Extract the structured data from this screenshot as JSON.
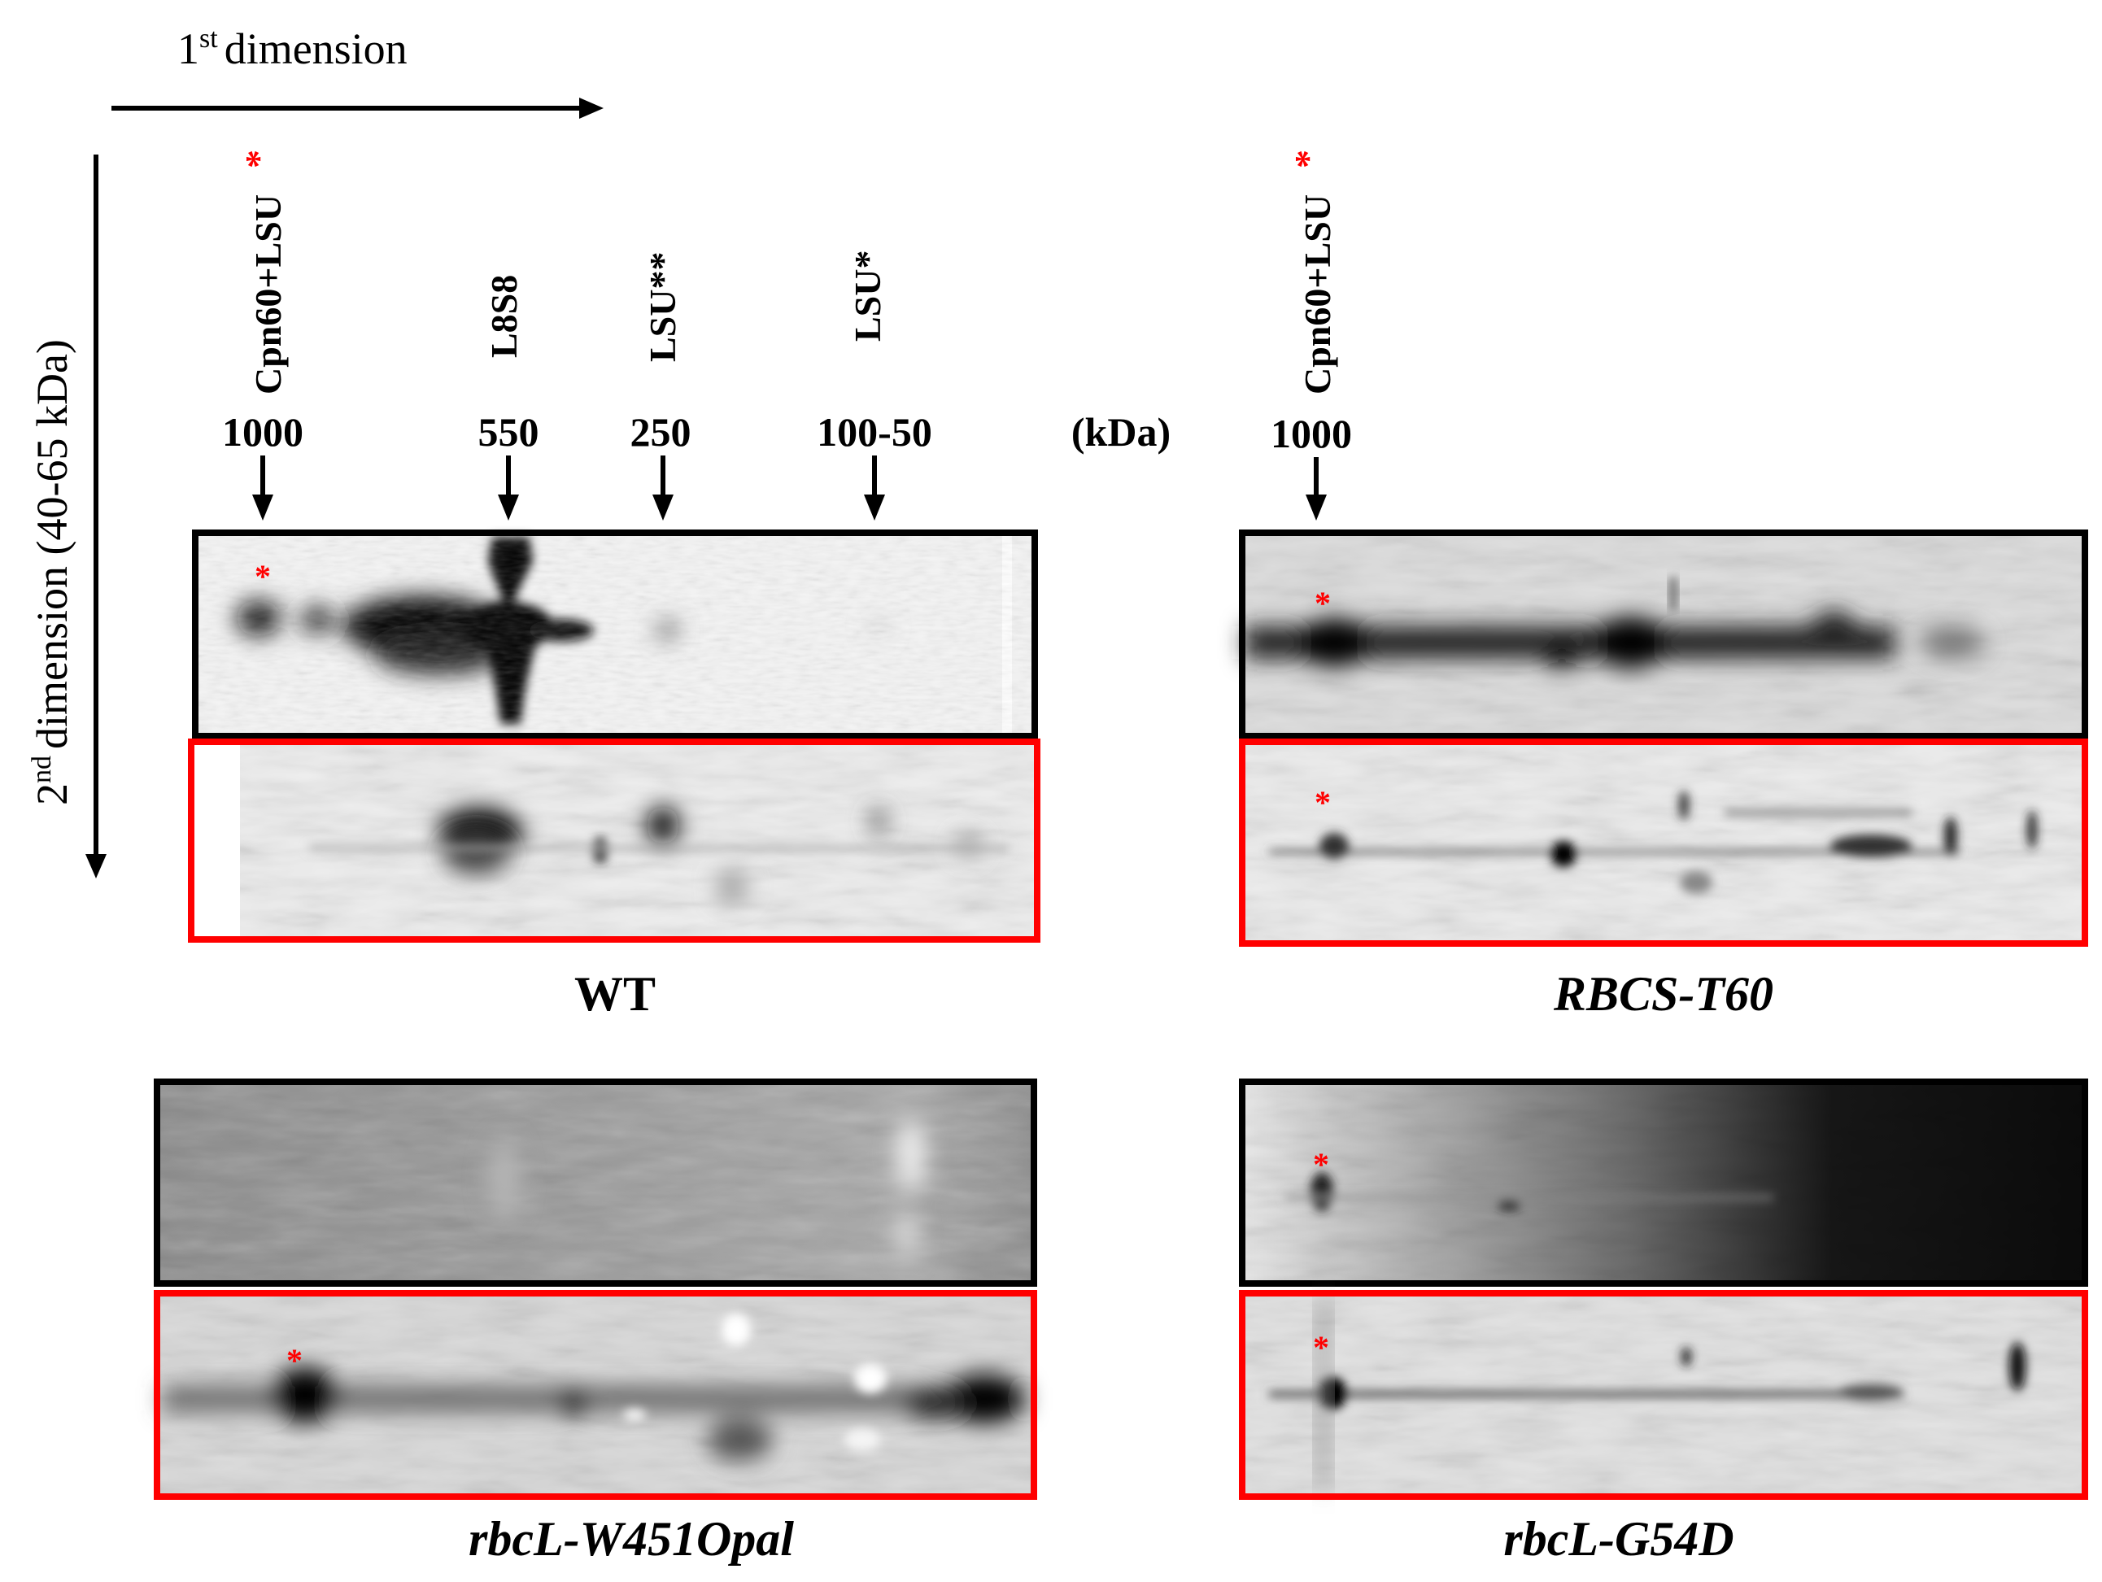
{
  "axes": {
    "first_dimension": {
      "ordinal": "1",
      "suffix": "st",
      "label": "dimension"
    },
    "second_dimension": {
      "ordinal": "2",
      "suffix": "nd",
      "label": "dimension (40-65 kDa)"
    }
  },
  "wt_markers": {
    "labels": [
      "Cpn60+LSU",
      "L8S8",
      "LSU**",
      "LSU*"
    ],
    "red_star": "*",
    "sizes": [
      "1000",
      "550",
      "250",
      "100-50"
    ],
    "unit": "(kDa)"
  },
  "t60_markers": {
    "label": "Cpn60+LSU",
    "red_star": "*",
    "size": "1000"
  },
  "panels": {
    "wt": {
      "caption": "WT"
    },
    "t60": {
      "caption": "RBCS-T60"
    },
    "w451": {
      "caption": "rbcL-W451Opal"
    },
    "g54d": {
      "caption": "rbcL-G54D"
    }
  },
  "spot_marker": "*",
  "colors": {
    "black_frame": "#000000",
    "red_frame": "#ff0000",
    "star": "#ff0000"
  }
}
